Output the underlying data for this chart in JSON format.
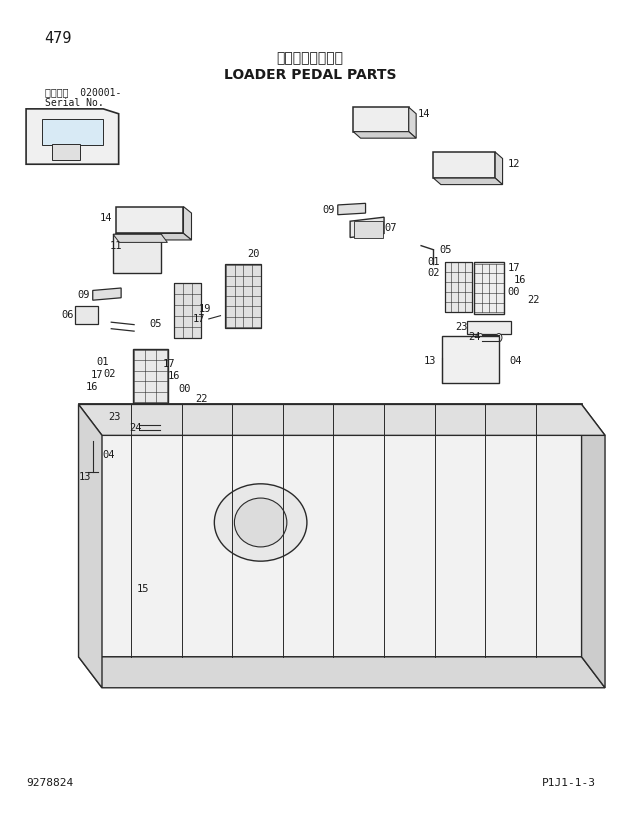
{
  "page_number": "479",
  "title_japanese": "ローダペダル部品",
  "title_english": "LOADER PEDAL PARTS",
  "serial_label": "適用号機  020001-",
  "serial_sub": "Serial No.",
  "drawing_code": "P1J1-1-3",
  "catalog_number": "9278824",
  "bg_color": "#ffffff",
  "text_color": "#1a1a1a",
  "line_color": "#2a2a2a"
}
